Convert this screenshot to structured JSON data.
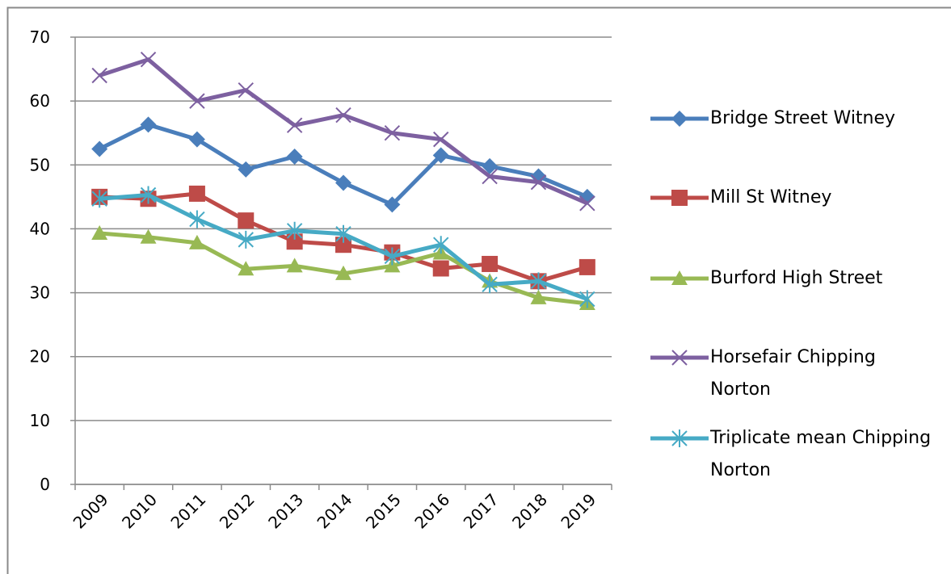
{
  "chart_data": {
    "type": "line",
    "categories": [
      "2009",
      "2010",
      "2011",
      "2012",
      "2013",
      "2014",
      "2015",
      "2016",
      "2017",
      "2018",
      "2019"
    ],
    "ylim": [
      0,
      70
    ],
    "yticks": [
      0,
      10,
      20,
      30,
      40,
      50,
      60,
      70
    ],
    "grid": true,
    "series": [
      {
        "name": "Bridge Street Witney",
        "color": "#4a7ebb",
        "marker": "diamond",
        "values": [
          52.5,
          56.3,
          54,
          49.3,
          51.3,
          47.2,
          43.8,
          51.5,
          49.8,
          48.2,
          45
        ]
      },
      {
        "name": "Mill St Witney",
        "color": "#be4b48",
        "marker": "square",
        "values": [
          45,
          44.7,
          45.5,
          41.3,
          38,
          37.5,
          36.3,
          33.8,
          34.5,
          31.8,
          34
        ]
      },
      {
        "name": "Burford High Street",
        "color": "#98b954",
        "marker": "triangle",
        "values": [
          39.3,
          38.7,
          37.8,
          33.7,
          34.2,
          33,
          34.2,
          36.2,
          31.8,
          29.2,
          28.3
        ]
      },
      {
        "name": "Horsefair Chipping Norton",
        "color": "#7d60a0",
        "marker": "x",
        "values": [
          64,
          66.5,
          60,
          61.7,
          56.2,
          57.8,
          55,
          54,
          48.2,
          47.3,
          44
        ]
      },
      {
        "name": "Triplicate mean Chipping Norton",
        "color": "#46aac5",
        "marker": "star",
        "values": [
          44.7,
          45.3,
          41.5,
          38.3,
          39.7,
          39.2,
          35.7,
          37.5,
          31.3,
          31.8,
          29
        ]
      }
    ]
  }
}
